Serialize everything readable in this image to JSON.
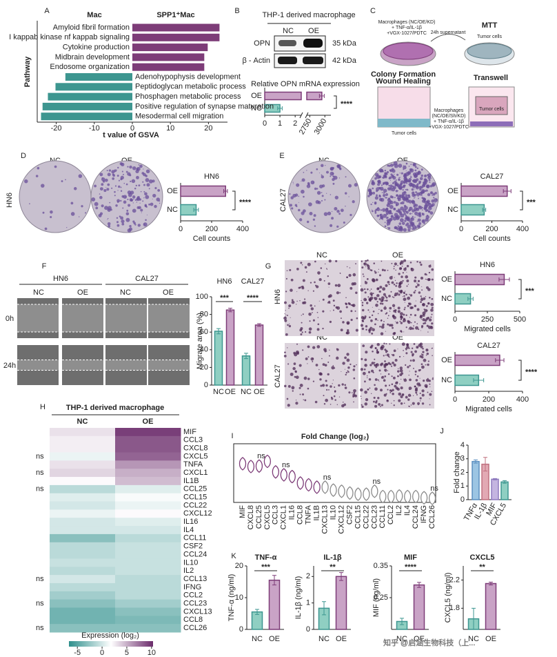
{
  "panel_labels": [
    "A",
    "B",
    "C",
    "D",
    "E",
    "F",
    "G",
    "H",
    "I",
    "J",
    "K"
  ],
  "blot": {
    "title": "THP-1 derived macrophage",
    "columns": [
      "NC",
      "OE"
    ],
    "rows": [
      "OPN",
      "β - Actin"
    ],
    "sizes": [
      "35 kDa",
      "42 kDa"
    ]
  },
  "schematic": {
    "top_treatment": [
      "Macrophages (NC/OE/KD)",
      "+ TNF-α/IL-1β",
      "+VGX-1027/PDTC"
    ],
    "transfer": "24h supernatant",
    "mtt": "MTT",
    "mtt_cells": "Tumor cells",
    "left_assays": [
      "Colony Formation",
      "Wound Healing"
    ],
    "transwell": "Transwell",
    "transwell_cells": "Tumor cells",
    "bottom_treatment": [
      "Macrophages",
      "(NC/OE/Sh/KD)",
      "+ TNF-α/IL-1β",
      "+VGX-1027/PDTC"
    ],
    "left_cells": "Tumor cells"
  },
  "colony": {
    "hn6": {
      "columns": [
        "NC",
        "OE"
      ],
      "row": "HN6"
    },
    "cal27": {
      "columns": [
        "NC",
        "OE"
      ],
      "row": "CAL27"
    }
  },
  "wound": {
    "cell_lines": [
      "HN6",
      "CAL27"
    ],
    "columns": [
      "NC",
      "OE",
      "NC",
      "OE"
    ],
    "rows": [
      "0h",
      "24h"
    ]
  },
  "transwell_images": {
    "rows": [
      {
        "name": "HN6",
        "columns": [
          "NC",
          "OE"
        ]
      },
      {
        "name": "CAL27",
        "columns": [
          "NC",
          "OE"
        ]
      }
    ]
  },
  "watermark": "知乎 @启涵生物科技（上...",
  "chart_data": [
    {
      "type": "bar",
      "orientation": "horizontal",
      "categories": [
        "Amyloid fibril formation",
        "I kappab kinase nf kappab signaling",
        "Cytokine production",
        "Midbrain development",
        "Endosome organization",
        "Adenohypophysis development",
        "Peptidoglycan metabolic process",
        "Phosphagen metabolic process",
        "Positive regulation of synapse maturation",
        "Mesodermal cell migration"
      ],
      "series": [
        {
          "name": "Mac",
          "color": "#3d9690",
          "values": [
            null,
            null,
            null,
            null,
            null,
            -17.6,
            -20.2,
            -22.2,
            -23.6,
            -24.0
          ]
        },
        {
          "name": "SPP1⁺Mac",
          "color": "#7d3c78",
          "values": [
            22.9,
            22.9,
            19.8,
            18.9,
            18.9,
            null,
            null,
            null,
            null,
            null
          ]
        }
      ],
      "xlim": [
        -25,
        25
      ],
      "xticks": [
        -20,
        -10,
        0,
        10,
        20
      ],
      "xlabel": "t value of GSVA",
      "ylabel": "Pathway"
    },
    {
      "type": "bar",
      "orientation": "horizontal",
      "title": "Relative OPN mRNA expression",
      "categories": [
        "OE",
        "NC"
      ],
      "values": [
        2950,
        1.0
      ],
      "errors": [
        40,
        0.15
      ],
      "colors": [
        "#c9a3c6",
        "#8fcfc2"
      ],
      "edgecolors": [
        "#7d3c78",
        "#3d9690"
      ],
      "xlim": [
        0,
        3100
      ],
      "axis_break": [
        2.4,
        2700
      ],
      "xticks": [
        0,
        1,
        2,
        2750,
        3000
      ],
      "significance": "****"
    },
    {
      "type": "bar",
      "orientation": "horizontal",
      "title": "HN6",
      "categories": [
        "OE",
        "NC"
      ],
      "values": [
        290,
        100
      ],
      "errors": [
        12,
        15
      ],
      "colors": [
        "#c9a3c6",
        "#8fcfc2"
      ],
      "edgecolors": [
        "#7d3c78",
        "#3d9690"
      ],
      "xlim": [
        0,
        400
      ],
      "xticks": [
        0,
        200,
        400
      ],
      "xlabel": "Cell counts",
      "significance": "****"
    },
    {
      "type": "bar",
      "orientation": "horizontal",
      "title": "CAL27",
      "categories": [
        "OE",
        "NC"
      ],
      "values": [
        300,
        150
      ],
      "errors": [
        25,
        10
      ],
      "colors": [
        "#c9a3c6",
        "#8fcfc2"
      ],
      "edgecolors": [
        "#7d3c78",
        "#3d9690"
      ],
      "xlim": [
        0,
        400
      ],
      "xticks": [
        0,
        200,
        400
      ],
      "xlabel": "Cell counts",
      "significance": "***"
    },
    {
      "type": "bar",
      "orientation": "vertical",
      "categories": [
        "NC",
        "OE",
        "NC",
        "OE"
      ],
      "groups": [
        "HN6",
        "CAL27"
      ],
      "values": [
        61,
        85,
        33,
        68
      ],
      "errors": [
        3,
        2,
        3,
        1.5
      ],
      "colors": [
        "#8fcfc2",
        "#c9a3c6",
        "#8fcfc2",
        "#c9a3c6"
      ],
      "edgecolors": [
        "#3d9690",
        "#7d3c78",
        "#3d9690",
        "#7d3c78"
      ],
      "ylim": [
        0,
        100
      ],
      "yticks": [
        0,
        20,
        40,
        60,
        80,
        100
      ],
      "ylabel": "Migrate area (%)",
      "significance": [
        "***",
        "****"
      ]
    },
    {
      "type": "bar",
      "orientation": "horizontal",
      "title": "HN6",
      "categories": [
        "OE",
        "NC"
      ],
      "values": [
        380,
        120
      ],
      "errors": [
        40,
        20
      ],
      "colors": [
        "#c9a3c6",
        "#8fcfc2"
      ],
      "edgecolors": [
        "#7d3c78",
        "#3d9690"
      ],
      "xlim": [
        0,
        500
      ],
      "xticks": [
        0,
        250,
        500
      ],
      "xlabel": "Migrated cells",
      "significance": "***"
    },
    {
      "type": "bar",
      "orientation": "horizontal",
      "title": "CAL27",
      "categories": [
        "OE",
        "NC"
      ],
      "values": [
        265,
        140
      ],
      "errors": [
        25,
        30
      ],
      "colors": [
        "#c9a3c6",
        "#8fcfc2"
      ],
      "edgecolors": [
        "#7d3c78",
        "#3d9690"
      ],
      "xlim": [
        0,
        400
      ],
      "xticks": [
        0,
        200,
        400
      ],
      "xlabel": "Migrated cells",
      "significance": "****"
    },
    {
      "type": "heatmap",
      "title": "THP-1 derived macrophage",
      "columns": [
        "NC",
        "OE"
      ],
      "rows": [
        "MIF",
        "CCL3",
        "CXCL8",
        "CXCL5",
        "TNFA",
        "CXCL1",
        "IL1B",
        "CCL25",
        "CCL15",
        "CCL22",
        "CXCL12",
        "IL16",
        "IL4",
        "CCL11",
        "CSF2",
        "CCL24",
        "IL10",
        "IL2",
        "CCL13",
        "IFNG",
        "CCL2",
        "CCL23",
        "CXCL13",
        "CCL8",
        "CCL26"
      ],
      "values": [
        [
          3,
          9.5
        ],
        [
          2.5,
          8.5
        ],
        [
          2.5,
          8.5
        ],
        [
          1,
          8
        ],
        [
          3,
          6
        ],
        [
          3.5,
          5
        ],
        [
          2,
          4.5
        ],
        [
          -1,
          0.5
        ],
        [
          0.5,
          1.5
        ],
        [
          0,
          1
        ],
        [
          1,
          2
        ],
        [
          0,
          0.5
        ],
        [
          0,
          0
        ],
        [
          -3,
          -1
        ],
        [
          -1,
          -0.5
        ],
        [
          -1,
          -0.5
        ],
        [
          -0.5,
          -0.5
        ],
        [
          -1,
          -0.5
        ],
        [
          0,
          -1
        ],
        [
          -1,
          -1
        ],
        [
          -2,
          -1
        ],
        [
          -3,
          -2
        ],
        [
          -4,
          -3
        ],
        [
          -4,
          -3.5
        ],
        [
          -3,
          -3
        ]
      ],
      "significance": [
        null,
        null,
        null,
        "ns",
        null,
        "ns",
        null,
        "ns",
        null,
        null,
        null,
        null,
        null,
        null,
        null,
        null,
        null,
        null,
        "ns",
        null,
        null,
        "ns",
        null,
        null,
        "ns"
      ],
      "clim": [
        -6.7,
        10.3
      ],
      "cticks": [
        -5,
        0,
        5,
        10
      ],
      "colormap": [
        "#2f8f8c",
        "#ffffff",
        "#6b2b6b"
      ],
      "colorbar_label": "Expression (log₂)"
    },
    {
      "type": "violin",
      "title": "Fold Change (log₂)",
      "categories": [
        "MIF",
        "CXCL8",
        "CCL25",
        "CXCL5",
        "CCL3",
        "CXCL1",
        "IL16",
        "CCL8",
        "TNFA",
        "IL1B",
        "CXCL13",
        "IL10",
        "CXCL12",
        "CSF2",
        "CCL15",
        "CCL22",
        "CCL23",
        "CCL11",
        "CCL2",
        "IL2",
        "IL4",
        "CCL24",
        "IFNG",
        "CCL26"
      ],
      "values": [
        2.3,
        2.06,
        2.1,
        2.5,
        1.6,
        1.35,
        1.2,
        0.65,
        0.5,
        0.3,
        0.3,
        0.05,
        -0.05,
        -0.2,
        -0.3,
        -0.3,
        -0.05,
        -0.5,
        -0.5,
        -0.45,
        -0.5,
        -0.5,
        -0.6,
        -0.65
      ],
      "colors": [
        "#7d3c78",
        "#7d3c78",
        "#7d3c78",
        "#7d3c78",
        "#7d3c78",
        "#7d3c78",
        "#7d3c78",
        "#7d3c78",
        "#7d3c78",
        "#7d3c78",
        "#8a8a8a",
        "#8a8a8a",
        "#8a8a8a",
        "#8a8a8a",
        "#8a8a8a",
        "#8a8a8a",
        "#8a8a8a",
        "#8a8a8a",
        "#8a8a8a",
        "#8a8a8a",
        "#8a8a8a",
        "#8a8a8a",
        "#8a8a8a",
        "#8a8a8a"
      ],
      "significance": [
        null,
        null,
        "ns",
        null,
        null,
        "ns",
        null,
        null,
        null,
        null,
        "ns",
        null,
        null,
        null,
        null,
        null,
        "ns",
        null,
        null,
        null,
        null,
        null,
        null,
        "ns"
      ],
      "ylim": [
        -1,
        4
      ]
    },
    {
      "type": "bar",
      "orientation": "vertical",
      "categories": [
        "TNFα",
        "IL-1β",
        "MIF",
        "CXCL5"
      ],
      "values": [
        2.8,
        2.6,
        1.5,
        1.3
      ],
      "errors": [
        0.12,
        0.5,
        0.05,
        0.1
      ],
      "colors": [
        "#9cc5e3",
        "#e2a9b3",
        "#c4b5e0",
        "#8fcfc2"
      ],
      "edgecolors": [
        "#5b8fc0",
        "#c0707f",
        "#8f7bbf",
        "#3d9690"
      ],
      "ylim": [
        0,
        4
      ],
      "yticks": [
        0,
        1,
        2,
        3,
        4
      ],
      "ylabel": "Fold change"
    },
    {
      "type": "bar",
      "orientation": "vertical",
      "title": "TNF-α",
      "categories": [
        "NC",
        "OE"
      ],
      "values": [
        5.5,
        15.5
      ],
      "errors": [
        0.8,
        1.5
      ],
      "colors": [
        "#8fcfc2",
        "#c9a3c6"
      ],
      "edgecolors": [
        "#3d9690",
        "#7d3c78"
      ],
      "ylim": [
        0,
        20
      ],
      "yticks": [
        0,
        10,
        20
      ],
      "ylabel": "TNF-α (ng/ml)",
      "significance": [
        "***"
      ]
    },
    {
      "type": "bar",
      "orientation": "vertical",
      "title": "IL-1β",
      "categories": [
        "NC",
        "OE"
      ],
      "values": [
        0.8,
        2.0
      ],
      "errors": [
        0.25,
        0.15
      ],
      "colors": [
        "#8fcfc2",
        "#c9a3c6"
      ],
      "edgecolors": [
        "#3d9690",
        "#7d3c78"
      ],
      "ylim": [
        0,
        2.4
      ],
      "yticks": [
        0,
        1,
        2
      ],
      "ylabel": "IL-1β (ng/ml)",
      "significance": [
        "**"
      ]
    },
    {
      "type": "bar",
      "orientation": "vertical",
      "title": "MIF",
      "categories": [
        "NC",
        "OE"
      ],
      "values": [
        0.175,
        0.29
      ],
      "errors": [
        0.01,
        0.008
      ],
      "colors": [
        "#8fcfc2",
        "#c9a3c6"
      ],
      "edgecolors": [
        "#3d9690",
        "#7d3c78"
      ],
      "ylim": [
        0.15,
        0.35
      ],
      "yticks": [
        0.25,
        0.35
      ],
      "ylabel": "MIF (ng/ml)",
      "significance": [
        "****"
      ]
    },
    {
      "type": "bar",
      "orientation": "vertical",
      "title": "CXCL5",
      "categories": [
        "NC",
        "OE"
      ],
      "values": [
        1.65,
        2.15
      ],
      "errors": [
        0.15,
        0.02
      ],
      "colors": [
        "#8fcfc2",
        "#c9a3c6"
      ],
      "edgecolors": [
        "#3d9690",
        "#7d3c78"
      ],
      "ylim": [
        1.5,
        2.4
      ],
      "yticks": [
        1.8,
        2.2
      ],
      "ylabel": "CXCL5 (ng/ml)",
      "significance": [
        "**"
      ]
    }
  ]
}
